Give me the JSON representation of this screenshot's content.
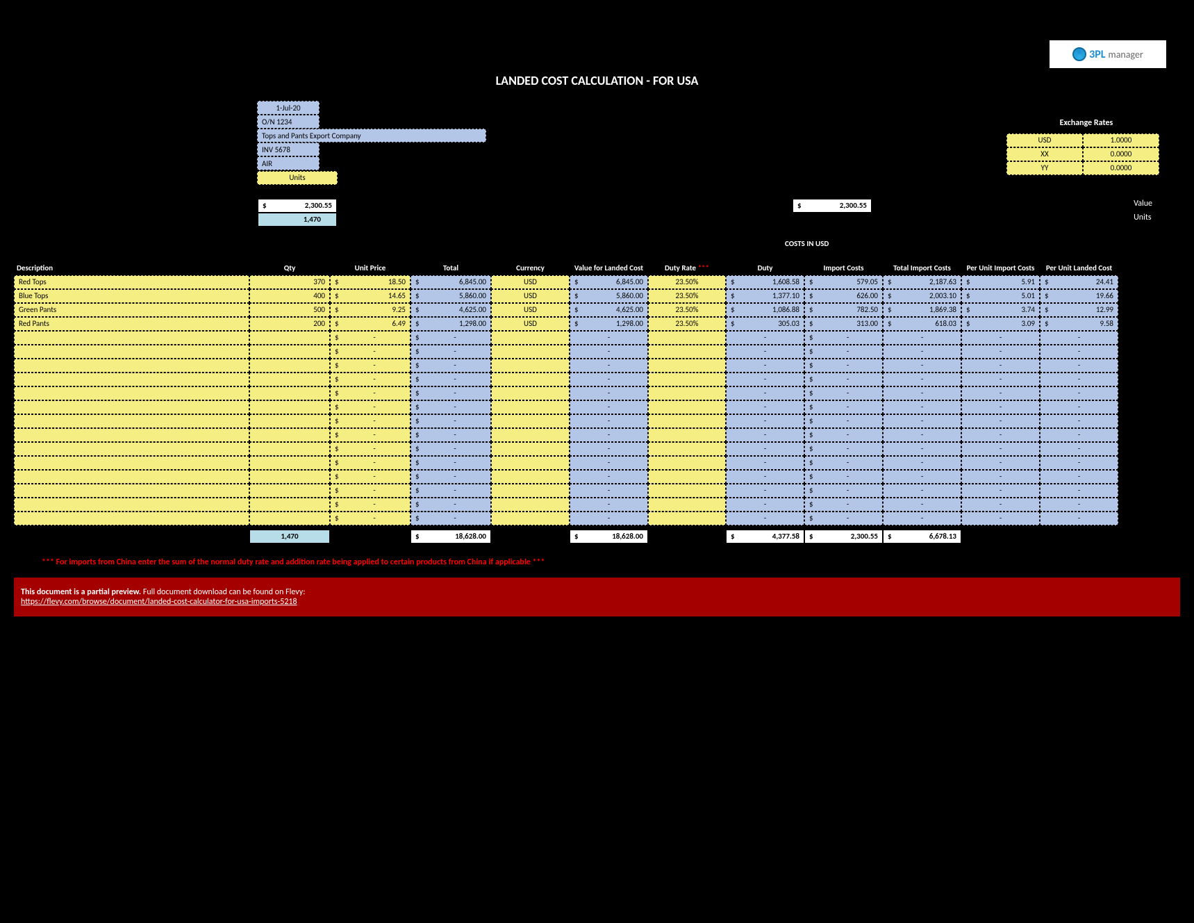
{
  "logo": {
    "brand": "3PL",
    "sub": "manager"
  },
  "title": "LANDED COST CALCULATION - FOR USA",
  "info": {
    "date": "1-Jul-20",
    "order_no": "O/N 1234",
    "company": "Tops and Pants Export Company",
    "invoice": "INV 5678",
    "ship_mode": "AIR"
  },
  "units_label": "Units",
  "exchange": {
    "title": "Exchange Rates",
    "rows": [
      {
        "label": "USD",
        "value": "1.0000"
      },
      {
        "label": "XX",
        "value": "0.0000"
      },
      {
        "label": "YY",
        "value": "0.0000"
      }
    ]
  },
  "summary_left": {
    "value": "2,300.55",
    "qty": "1,470"
  },
  "summary_right": {
    "value": "2,300.55",
    "value_label": "Value",
    "units_label": "Units"
  },
  "costs_in_usd": "COSTS IN USD",
  "headers": {
    "desc": "Description",
    "qty": "Qty",
    "unit_price": "Unit Price",
    "total": "Total",
    "currency": "Currency",
    "vlc": "Value for Landed Cost",
    "duty_rate": "Duty Rate",
    "duty_rate_stars": "***",
    "duty": "Duty",
    "import_costs": "Import Costs",
    "tic": "Total Import Costs",
    "pui": "Per Unit Import Costs",
    "pul": "Per Unit Landed Cost"
  },
  "rows": [
    {
      "desc": "Red Tops",
      "qty": "370",
      "unit_price": "18.50",
      "total": "6,845.00",
      "currency": "USD",
      "vlc": "6,845.00",
      "duty_rate": "23.50%",
      "duty": "1,608.58",
      "import_costs": "579.05",
      "tic": "2,187.63",
      "pui": "5.91",
      "pul": "24.41"
    },
    {
      "desc": "Blue Tops",
      "qty": "400",
      "unit_price": "14.65",
      "total": "5,860.00",
      "currency": "USD",
      "vlc": "5,860.00",
      "duty_rate": "23.50%",
      "duty": "1,377.10",
      "import_costs": "626.00",
      "tic": "2,003.10",
      "pui": "5.01",
      "pul": "19.66"
    },
    {
      "desc": "Green Pants",
      "qty": "500",
      "unit_price": "9.25",
      "total": "4,625.00",
      "currency": "USD",
      "vlc": "4,625.00",
      "duty_rate": "23.50%",
      "duty": "1,086.88",
      "import_costs": "782.50",
      "tic": "1,869.38",
      "pui": "3.74",
      "pul": "12.99"
    },
    {
      "desc": "Red Pants",
      "qty": "200",
      "unit_price": "6.49",
      "total": "1,298.00",
      "currency": "USD",
      "vlc": "1,298.00",
      "duty_rate": "23.50%",
      "duty": "305.03",
      "import_costs": "313.00",
      "tic": "618.03",
      "pui": "3.09",
      "pul": "9.58"
    }
  ],
  "empty_row_count": 14,
  "dash": "-",
  "totals": {
    "qty": "1,470",
    "total": "18,628.00",
    "vlc": "18,628.00",
    "duty": "4,377.58",
    "import_costs": "2,300.55",
    "tic": "6,678.13"
  },
  "footnote": "*** For imports from China enter the sum of the normal duty rate and addition rate being applied to certain products from China if applicable ***",
  "banner": {
    "line1_bold": "This document is a partial preview.",
    "line1_rest": " Full document download can be found on Flevy:",
    "link": "https://flevy.com/browse/document/landed-cost-calculator-for-usa-imports-5218"
  },
  "colors": {
    "bg": "#000000",
    "yellow": "#f5ee83",
    "blue_cell": "#b4c6e7",
    "teal": "#b7dee8",
    "red_text": "#ff0000",
    "banner_bg": "#a40000"
  }
}
